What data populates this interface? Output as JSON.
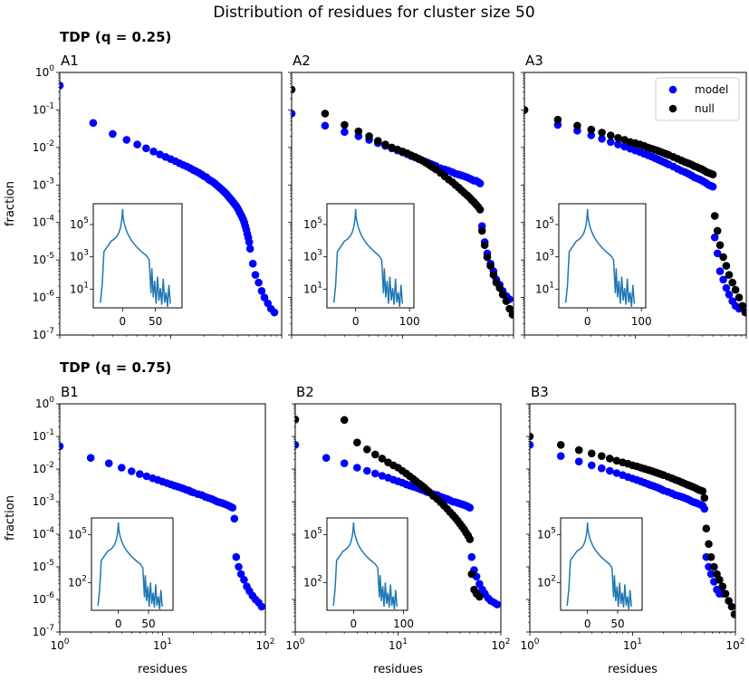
{
  "suptitle": "Distribution of residues for cluster size 50",
  "groups": [
    {
      "title": "TDP (q = 0.25)"
    },
    {
      "title": "TDP (q = 0.75)"
    }
  ],
  "colors": {
    "model": "#0000ff",
    "null": "#000000",
    "inset_line": "#1f77b4"
  },
  "legend": {
    "placement": "upper-right",
    "panel": "A3",
    "items": [
      {
        "label": "model",
        "color": "#0000ff"
      },
      {
        "label": "null",
        "color": "#000000"
      }
    ]
  },
  "axes": {
    "x_scale": "log",
    "y_scale": "log",
    "xlim": [
      1,
      100
    ],
    "ylim": [
      1e-07,
      1
    ],
    "xlabel": "residues",
    "ylabel": "fraction",
    "x_ticks": [
      "10^0",
      "10^1",
      "10^2"
    ],
    "y_ticks": [
      "10^-7",
      "10^-6",
      "10^-5",
      "10^-4",
      "10^-3",
      "10^-2",
      "10^-1",
      "10^0"
    ]
  },
  "chart_data": [
    {
      "panel": "A1",
      "type": "scatter",
      "row": 0,
      "col": 0,
      "series": [
        {
          "name": "model",
          "x": [
            1,
            2,
            3,
            4,
            5,
            6,
            7,
            8,
            9,
            10,
            11,
            12,
            13,
            14,
            15,
            16,
            17,
            18,
            19,
            20,
            21,
            22,
            23,
            24,
            25,
            26,
            27,
            28,
            29,
            30,
            31,
            32,
            33,
            34,
            35,
            36,
            37,
            38,
            39,
            40,
            41,
            42,
            43,
            44,
            45,
            46,
            47,
            48,
            49,
            50,
            51,
            52,
            55,
            58,
            62,
            66,
            70,
            75,
            80,
            86
          ],
          "y": [
            0.45,
            0.045,
            0.023,
            0.016,
            0.012,
            0.0095,
            0.0078,
            0.0065,
            0.0056,
            0.0049,
            0.0043,
            0.0038,
            0.0034,
            0.0031,
            0.0028,
            0.0025,
            0.0023,
            0.0021,
            0.0019,
            0.0017,
            0.0016,
            0.0014,
            0.0013,
            0.0012,
            0.0011,
            0.00099,
            0.0009,
            0.00082,
            0.00075,
            0.00068,
            0.00062,
            0.00056,
            0.0005,
            0.00045,
            0.00041,
            0.00037,
            0.00033,
            0.0003,
            0.00027,
            0.00024,
            0.00021,
            0.00018,
            0.00016,
            0.00014,
            0.00012,
            0.0001,
            8e-05,
            6.5e-05,
            5e-05,
            4e-05,
            3e-05,
            2e-05,
            8e-06,
            4e-06,
            2.5e-06,
            1.5e-06,
            1e-06,
            7e-07,
            5e-07,
            4e-07
          ]
        }
      ],
      "inset": {
        "x_ticks": [
          "0",
          "50"
        ],
        "y_ticks": [
          "10^1",
          "10^3",
          "10^5"
        ]
      }
    },
    {
      "panel": "A2",
      "type": "scatter",
      "row": 0,
      "col": 1,
      "series": [
        {
          "name": "model",
          "x": [
            1,
            2,
            3,
            4,
            5,
            6,
            7,
            8,
            9,
            10,
            11,
            12,
            13,
            14,
            15,
            16,
            17,
            18,
            19,
            20,
            22,
            24,
            26,
            28,
            30,
            32,
            34,
            36,
            38,
            40,
            42,
            44,
            46,
            48,
            50,
            52,
            55,
            58,
            62,
            66,
            70,
            75,
            80,
            86,
            92
          ],
          "y": [
            0.08,
            0.038,
            0.026,
            0.02,
            0.016,
            0.013,
            0.011,
            0.0095,
            0.0083,
            0.0074,
            0.0066,
            0.0059,
            0.0054,
            0.0049,
            0.0045,
            0.0042,
            0.0039,
            0.0036,
            0.0034,
            0.0032,
            0.0028,
            0.0026,
            0.0024,
            0.0022,
            0.002,
            0.0019,
            0.0018,
            0.0017,
            0.0016,
            0.0015,
            0.0014,
            0.0013,
            0.0013,
            0.0012,
            0.0011,
            8e-05,
            3e-05,
            1.5e-05,
            8e-06,
            5e-06,
            3e-06,
            2.2e-06,
            1.5e-06,
            1.1e-06,
            9e-07
          ]
        },
        {
          "name": "null",
          "x": [
            1,
            2,
            3,
            4,
            5,
            6,
            7,
            8,
            9,
            10,
            11,
            12,
            13,
            14,
            15,
            16,
            17,
            18,
            19,
            20,
            22,
            24,
            26,
            28,
            30,
            32,
            34,
            36,
            38,
            40,
            42,
            44,
            46,
            48,
            50,
            52,
            55,
            58,
            62,
            66,
            70,
            75,
            80,
            86,
            92,
            98
          ],
          "y": [
            0.35,
            0.08,
            0.04,
            0.027,
            0.02,
            0.015,
            0.012,
            0.01,
            0.0088,
            0.0078,
            0.007,
            0.0062,
            0.0056,
            0.005,
            0.0045,
            0.004,
            0.0036,
            0.0032,
            0.0029,
            0.0026,
            0.0021,
            0.0017,
            0.0014,
            0.0012,
            0.001,
            0.00085,
            0.00072,
            0.00062,
            0.00054,
            0.00047,
            0.0004,
            0.00035,
            0.0003,
            0.00026,
            0.00022,
            6e-05,
            2.5e-05,
            1.2e-05,
            7e-06,
            4e-06,
            2.5e-06,
            1.8e-06,
            1.2e-06,
            8e-07,
            5e-07,
            3.5e-07
          ]
        }
      ],
      "inset": {
        "x_ticks": [
          "0",
          "100"
        ],
        "y_ticks": [
          "10^1",
          "10^3",
          "10^5"
        ]
      }
    },
    {
      "panel": "A3",
      "type": "scatter",
      "row": 0,
      "col": 2,
      "series": [
        {
          "name": "model",
          "x": [
            1,
            2,
            3,
            4,
            5,
            6,
            7,
            8,
            9,
            10,
            11,
            12,
            13,
            14,
            15,
            16,
            17,
            18,
            19,
            20,
            22,
            24,
            26,
            28,
            30,
            32,
            34,
            36,
            38,
            40,
            42,
            44,
            46,
            48,
            50,
            52,
            55,
            58,
            62,
            66,
            70,
            75,
            80,
            86
          ],
          "y": [
            0.1,
            0.04,
            0.028,
            0.021,
            0.017,
            0.014,
            0.012,
            0.0105,
            0.0093,
            0.0083,
            0.0075,
            0.0068,
            0.0062,
            0.0057,
            0.0052,
            0.0048,
            0.0044,
            0.0041,
            0.0038,
            0.0035,
            0.0031,
            0.0027,
            0.0024,
            0.0022,
            0.002,
            0.0018,
            0.0016,
            0.0015,
            0.0014,
            0.0013,
            0.0012,
            0.0011,
            0.001,
            0.00095,
            0.0009,
            4e-05,
            1.5e-05,
            5e-06,
            3e-06,
            1.8e-06,
            1.2e-06,
            8e-07,
            6e-07,
            5e-07
          ]
        },
        {
          "name": "null",
          "x": [
            1,
            2,
            3,
            4,
            5,
            6,
            7,
            8,
            9,
            10,
            11,
            12,
            13,
            14,
            15,
            16,
            17,
            18,
            19,
            20,
            22,
            24,
            26,
            28,
            30,
            32,
            34,
            36,
            38,
            40,
            42,
            44,
            46,
            48,
            50,
            52,
            55,
            58,
            62,
            66,
            70,
            75,
            80,
            86,
            92,
            98
          ],
          "y": [
            0.1,
            0.055,
            0.038,
            0.03,
            0.025,
            0.021,
            0.018,
            0.016,
            0.014,
            0.013,
            0.012,
            0.011,
            0.01,
            0.0093,
            0.0087,
            0.0081,
            0.0076,
            0.0071,
            0.0067,
            0.0063,
            0.0056,
            0.005,
            0.0045,
            0.0041,
            0.0038,
            0.0035,
            0.0032,
            0.003,
            0.0028,
            0.0026,
            0.0024,
            0.0022,
            0.0021,
            0.002,
            0.0019,
            0.00015,
            6e-05,
            2.5e-05,
            1.2e-05,
            7e-06,
            4e-06,
            2.5e-06,
            1.6e-06,
            1e-06,
            6e-07,
            4e-07
          ]
        }
      ],
      "inset": {
        "x_ticks": [
          "0",
          "100"
        ],
        "y_ticks": [
          "10^1",
          "10^3",
          "10^5"
        ]
      }
    },
    {
      "panel": "B1",
      "type": "scatter",
      "row": 1,
      "col": 0,
      "series": [
        {
          "name": "model",
          "x": [
            1,
            2,
            3,
            4,
            5,
            6,
            7,
            8,
            9,
            10,
            11,
            12,
            13,
            14,
            15,
            16,
            17,
            18,
            19,
            20,
            22,
            24,
            26,
            28,
            30,
            32,
            34,
            36,
            38,
            40,
            42,
            44,
            46,
            48,
            50,
            52,
            55,
            58,
            62,
            66,
            70,
            75,
            80,
            86,
            92
          ],
          "y": [
            0.05,
            0.022,
            0.015,
            0.011,
            0.0085,
            0.007,
            0.006,
            0.0052,
            0.0046,
            0.0041,
            0.0037,
            0.0034,
            0.0031,
            0.0029,
            0.0027,
            0.0025,
            0.0023,
            0.0022,
            0.002,
            0.0019,
            0.0017,
            0.0016,
            0.0014,
            0.0013,
            0.0012,
            0.0011,
            0.001,
            0.00095,
            0.0009,
            0.00085,
            0.0008,
            0.00075,
            0.0007,
            0.00065,
            0.0003,
            2e-05,
            1e-05,
            6e-06,
            4e-06,
            2.5e-06,
            1.8e-06,
            1.3e-06,
            1e-06,
            8e-07,
            6e-07
          ]
        }
      ],
      "inset": {
        "x_ticks": [
          "0",
          "50"
        ],
        "y_ticks": [
          "10^2",
          "10^5"
        ]
      }
    },
    {
      "panel": "B2",
      "type": "scatter",
      "row": 1,
      "col": 1,
      "series": [
        {
          "name": "model",
          "x": [
            1,
            2,
            3,
            4,
            5,
            6,
            7,
            8,
            9,
            10,
            11,
            12,
            13,
            14,
            15,
            16,
            17,
            18,
            19,
            20,
            22,
            24,
            26,
            28,
            30,
            32,
            34,
            36,
            38,
            40,
            42,
            44,
            46,
            48,
            50,
            52,
            55,
            58,
            62,
            66,
            70,
            75,
            80,
            86,
            92
          ],
          "y": [
            0.055,
            0.022,
            0.015,
            0.011,
            0.0088,
            0.0073,
            0.0062,
            0.0054,
            0.0047,
            0.0042,
            0.0038,
            0.0034,
            0.0031,
            0.0029,
            0.0027,
            0.0025,
            0.0023,
            0.0022,
            0.002,
            0.0019,
            0.0017,
            0.0016,
            0.0014,
            0.0013,
            0.0012,
            0.0011,
            0.001,
            0.00097,
            0.00092,
            0.00087,
            0.00083,
            0.00079,
            0.00075,
            0.0007,
            0.00065,
            2e-05,
            8e-06,
            5e-06,
            3e-06,
            2e-06,
            1.5e-06,
            1.1e-06,
            9e-07,
            8e-07,
            7e-07
          ]
        },
        {
          "name": "null",
          "x": [
            1,
            3,
            4,
            5,
            6,
            7,
            8,
            9,
            10,
            11,
            12,
            13,
            14,
            15,
            16,
            17,
            18,
            19,
            20,
            22,
            24,
            26,
            28,
            30,
            32,
            34,
            36,
            38,
            40,
            42,
            44,
            46,
            48,
            50,
            52,
            55,
            58,
            62
          ],
          "y": [
            0.33,
            0.32,
            0.065,
            0.04,
            0.028,
            0.021,
            0.016,
            0.013,
            0.011,
            0.0088,
            0.0073,
            0.006,
            0.005,
            0.0042,
            0.0036,
            0.0031,
            0.0027,
            0.0023,
            0.002,
            0.0015,
            0.0012,
            0.00095,
            0.00075,
            0.0006,
            0.00048,
            0.00039,
            0.00032,
            0.00026,
            0.00021,
            0.00017,
            0.00014,
            0.00011,
            9e-05,
            7e-05,
            6e-06,
            2e-06,
            1.5e-06,
            1.2e-06
          ]
        }
      ],
      "inset": {
        "x_ticks": [
          "0",
          "100"
        ],
        "y_ticks": [
          "10^2",
          "10^5"
        ]
      }
    },
    {
      "panel": "B3",
      "type": "scatter",
      "row": 1,
      "col": 2,
      "series": [
        {
          "name": "model",
          "x": [
            1,
            2,
            3,
            4,
            5,
            6,
            7,
            8,
            9,
            10,
            11,
            12,
            13,
            14,
            15,
            16,
            17,
            18,
            19,
            20,
            22,
            24,
            26,
            28,
            30,
            32,
            34,
            36,
            38,
            40,
            42,
            44,
            46,
            48,
            50,
            52,
            55,
            58,
            62,
            66,
            70,
            75
          ],
          "y": [
            0.055,
            0.025,
            0.017,
            0.013,
            0.0105,
            0.0088,
            0.0075,
            0.0065,
            0.0057,
            0.0051,
            0.0046,
            0.0042,
            0.0038,
            0.0035,
            0.0032,
            0.003,
            0.0028,
            0.0026,
            0.0024,
            0.0022,
            0.002,
            0.0018,
            0.0016,
            0.0015,
            0.0014,
            0.0013,
            0.0012,
            0.0011,
            0.001,
            0.00095,
            0.0009,
            0.00085,
            0.0008,
            0.00075,
            0.0006,
            2e-05,
            1e-05,
            6e-06,
            3.5e-06,
            2e-06,
            1.5e-06,
            1.5e-06
          ]
        },
        {
          "name": "null",
          "x": [
            1,
            2,
            3,
            4,
            5,
            6,
            7,
            8,
            9,
            10,
            11,
            12,
            13,
            14,
            15,
            16,
            17,
            18,
            19,
            20,
            22,
            24,
            26,
            28,
            30,
            32,
            34,
            36,
            38,
            40,
            42,
            44,
            46,
            48,
            50,
            52,
            55,
            58,
            62,
            66,
            70,
            75,
            80,
            86,
            92,
            98
          ],
          "y": [
            0.1,
            0.055,
            0.038,
            0.03,
            0.025,
            0.021,
            0.018,
            0.016,
            0.0145,
            0.013,
            0.012,
            0.011,
            0.0102,
            0.0095,
            0.0089,
            0.0083,
            0.0078,
            0.0073,
            0.0069,
            0.0065,
            0.0058,
            0.0052,
            0.0047,
            0.0043,
            0.0039,
            0.0036,
            0.0033,
            0.0031,
            0.0029,
            0.0027,
            0.0025,
            0.0023,
            0.0022,
            0.0021,
            0.0013,
            0.00015,
            5e-05,
            2e-05,
            1e-05,
            6e-06,
            4e-06,
            2.5e-06,
            1.5e-06,
            9e-07,
            6e-07,
            3.5e-07
          ]
        }
      ],
      "inset": {
        "x_ticks": [
          "0",
          "50"
        ],
        "y_ticks": [
          "10^2",
          "10^5"
        ]
      }
    }
  ]
}
